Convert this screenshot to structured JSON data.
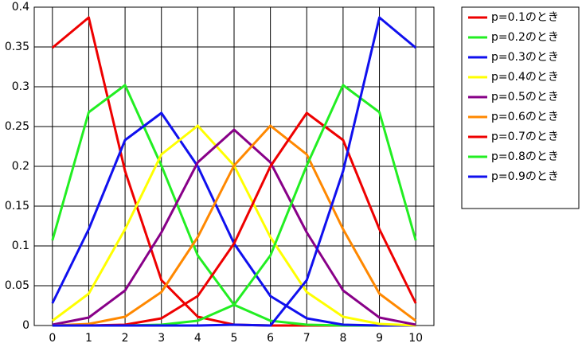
{
  "chart_data": {
    "type": "line",
    "x": [
      0,
      1,
      2,
      3,
      4,
      5,
      6,
      7,
      8,
      9,
      10
    ],
    "xlim": [
      -0.5,
      10.5
    ],
    "xticks": [
      0,
      1,
      2,
      3,
      4,
      5,
      6,
      7,
      8,
      9,
      10
    ],
    "ylim": [
      0,
      0.4
    ],
    "yticks": [
      0,
      0.05,
      0.1,
      0.15,
      0.2,
      0.25,
      0.3,
      0.35,
      0.4
    ],
    "grid": true,
    "legend": "right",
    "series": [
      {
        "name": "p=0.1のとき",
        "color": "#ee0000",
        "values": [
          0.349,
          0.387,
          0.194,
          0.057,
          0.011,
          0.001,
          0,
          0,
          0,
          0,
          0
        ]
      },
      {
        "name": "p=0.2のとき",
        "color": "#22ee22",
        "values": [
          0.107,
          0.268,
          0.302,
          0.201,
          0.088,
          0.026,
          0.006,
          0.001,
          0,
          0,
          0
        ]
      },
      {
        "name": "p=0.3のとき",
        "color": "#1010ee",
        "values": [
          0.028,
          0.121,
          0.233,
          0.267,
          0.2,
          0.103,
          0.037,
          0.009,
          0.001,
          0,
          0
        ]
      },
      {
        "name": "p=0.4のとき",
        "color": "#ffff00",
        "values": [
          0.006,
          0.04,
          0.121,
          0.215,
          0.251,
          0.201,
          0.111,
          0.042,
          0.011,
          0.002,
          0
        ]
      },
      {
        "name": "p=0.5のとき",
        "color": "#880088",
        "values": [
          0.001,
          0.01,
          0.044,
          0.117,
          0.205,
          0.246,
          0.205,
          0.117,
          0.044,
          0.01,
          0.001
        ]
      },
      {
        "name": "p=0.6のとき",
        "color": "#ff8800",
        "values": [
          0,
          0.002,
          0.011,
          0.042,
          0.111,
          0.201,
          0.251,
          0.215,
          0.121,
          0.04,
          0.006
        ]
      },
      {
        "name": "p=0.7のとき",
        "color": "#ee0000",
        "values": [
          0,
          0,
          0.001,
          0.009,
          0.037,
          0.103,
          0.2,
          0.267,
          0.233,
          0.121,
          0.028
        ]
      },
      {
        "name": "p=0.8のとき",
        "color": "#22ee22",
        "values": [
          0,
          0,
          0,
          0.001,
          0.006,
          0.026,
          0.088,
          0.201,
          0.302,
          0.268,
          0.107
        ]
      },
      {
        "name": "p=0.9のとき",
        "color": "#1010ee",
        "values": [
          0,
          0,
          0,
          0,
          0,
          0.001,
          0,
          0.057,
          0.194,
          0.387,
          0.349
        ]
      }
    ]
  }
}
